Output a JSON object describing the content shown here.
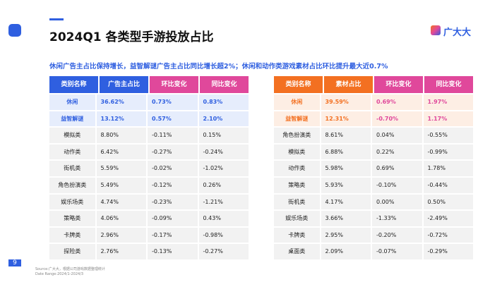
{
  "header": {
    "title": "2024Q1 各类型手游投放占比",
    "logo": "广大大",
    "subtitle": "休闲广告主占比保持增长，益智解谜广告主占比同比增长超2%；休闲和动作类游戏素材占比环比提升最大近0.7%"
  },
  "tables": [
    {
      "columns": [
        "类别名称",
        "广告主占比",
        "环比变化",
        "同比变化"
      ],
      "rows": [
        [
          "休闲",
          "36.62%",
          "0.73%",
          "0.83%"
        ],
        [
          "益智解谜",
          "13.12%",
          "0.57%",
          "2.10%"
        ],
        [
          "模拟类",
          "8.80%",
          "-0.11%",
          "0.15%"
        ],
        [
          "动作类",
          "6.42%",
          "-0.27%",
          "-0.24%"
        ],
        [
          "街机类",
          "5.59%",
          "-0.02%",
          "-1.02%"
        ],
        [
          "角色扮演类",
          "5.49%",
          "-0.12%",
          "0.26%"
        ],
        [
          "娱乐场类",
          "4.74%",
          "-0.23%",
          "-1.21%"
        ],
        [
          "策略类",
          "4.06%",
          "-0.09%",
          "0.43%"
        ],
        [
          "卡牌类",
          "2.96%",
          "-0.17%",
          "-0.98%"
        ],
        [
          "探险类",
          "2.76%",
          "-0.13%",
          "-0.27%"
        ]
      ]
    },
    {
      "columns": [
        "类别名称",
        "素材占比",
        "环比变化",
        "同比变化"
      ],
      "rows": [
        [
          "休闲",
          "39.59%",
          "0.69%",
          "1.97%"
        ],
        [
          "益智解谜",
          "12.31%",
          "-0.70%",
          "1.17%"
        ],
        [
          "角色扮演类",
          "8.61%",
          "0.04%",
          "-0.55%"
        ],
        [
          "模拟类",
          "6.88%",
          "0.22%",
          "-0.99%"
        ],
        [
          "动作类",
          "5.98%",
          "0.69%",
          "1.78%"
        ],
        [
          "策略类",
          "5.93%",
          "-0.10%",
          "-0.44%"
        ],
        [
          "街机类",
          "4.17%",
          "0.00%",
          "0.50%"
        ],
        [
          "娱乐场类",
          "3.66%",
          "-1.33%",
          "-2.49%"
        ],
        [
          "卡牌类",
          "2.95%",
          "-0.20%",
          "-0.72%"
        ],
        [
          "桌面类",
          "2.09%",
          "-0.07%",
          "-0.29%"
        ]
      ]
    }
  ],
  "footer": {
    "page": "9",
    "source": "Source:广大大，根据公司游戏数据整理统计",
    "date_range": "Date Range:2024/1-2024/3"
  }
}
